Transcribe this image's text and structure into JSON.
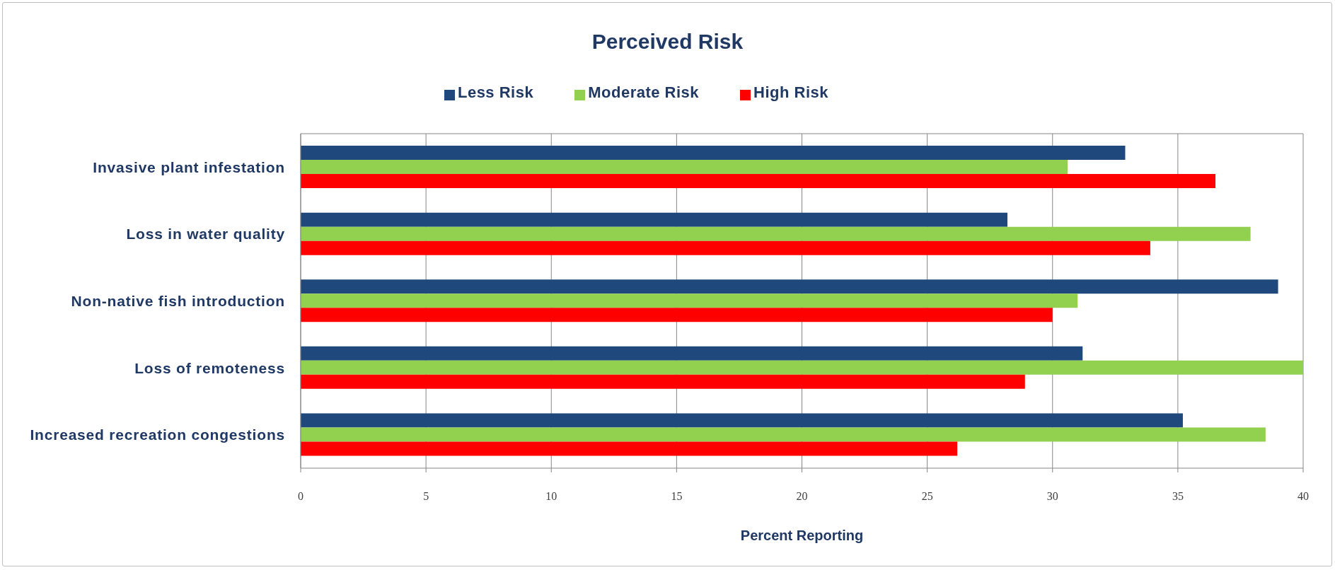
{
  "chart_data": {
    "type": "bar",
    "title": "Perceived Risk",
    "xlabel": "Percent Reporting",
    "orientation": "horizontal",
    "categories": [
      "Invasive plant infestation",
      "Loss in water quality",
      "Non-native fish introduction",
      "Loss of remoteness",
      "Increased recreation congestions"
    ],
    "series": [
      {
        "name": "Less Risk",
        "color": "#1f497d",
        "values": [
          32.9,
          28.2,
          39.0,
          31.2,
          35.2
        ]
      },
      {
        "name": "Moderate Risk",
        "color": "#92d050",
        "values": [
          30.6,
          37.9,
          31.0,
          40.0,
          38.5
        ]
      },
      {
        "name": "High Risk",
        "color": "#ff0000",
        "values": [
          36.5,
          33.9,
          30.0,
          28.9,
          26.2
        ]
      }
    ],
    "xlim": [
      0,
      40
    ],
    "xticks": [
      0,
      5,
      10,
      15,
      20,
      25,
      30,
      35,
      40
    ],
    "grid": "x",
    "legend": "top"
  }
}
